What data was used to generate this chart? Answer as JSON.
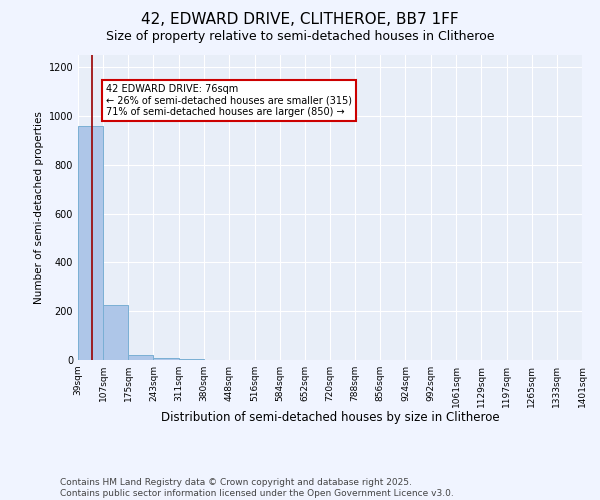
{
  "title": "42, EDWARD DRIVE, CLITHEROE, BB7 1FF",
  "subtitle": "Size of property relative to semi-detached houses in Clitheroe",
  "xlabel": "Distribution of semi-detached houses by size in Clitheroe",
  "ylabel": "Number of semi-detached properties",
  "bin_edges": [
    39,
    107,
    175,
    243,
    311,
    380,
    448,
    516,
    584,
    652,
    720,
    788,
    856,
    924,
    992,
    1061,
    1129,
    1197,
    1265,
    1333,
    1401
  ],
  "bar_heights": [
    960,
    225,
    20,
    10,
    3,
    2,
    1,
    1,
    0,
    0,
    0,
    0,
    0,
    0,
    0,
    0,
    0,
    0,
    0,
    0
  ],
  "bar_color": "#aec6e8",
  "bar_edgecolor": "#7aafd4",
  "property_size": 76,
  "vline_color": "#990000",
  "annotation_text": "42 EDWARD DRIVE: 76sqm\n← 26% of semi-detached houses are smaller (315)\n71% of semi-detached houses are larger (850) →",
  "annotation_box_color": "#ffffff",
  "annotation_border_color": "#cc0000",
  "ylim": [
    0,
    1250
  ],
  "yticks": [
    0,
    200,
    400,
    600,
    800,
    1000,
    1200
  ],
  "footer": "Contains HM Land Registry data © Crown copyright and database right 2025.\nContains public sector information licensed under the Open Government Licence v3.0.",
  "bg_color": "#f0f4ff",
  "plot_bg_color": "#e8eef8",
  "grid_color": "#ffffff",
  "title_fontsize": 11,
  "subtitle_fontsize": 9,
  "tick_label_fontsize": 6.5,
  "footer_fontsize": 6.5,
  "ylabel_fontsize": 7.5,
  "xlabel_fontsize": 8.5
}
